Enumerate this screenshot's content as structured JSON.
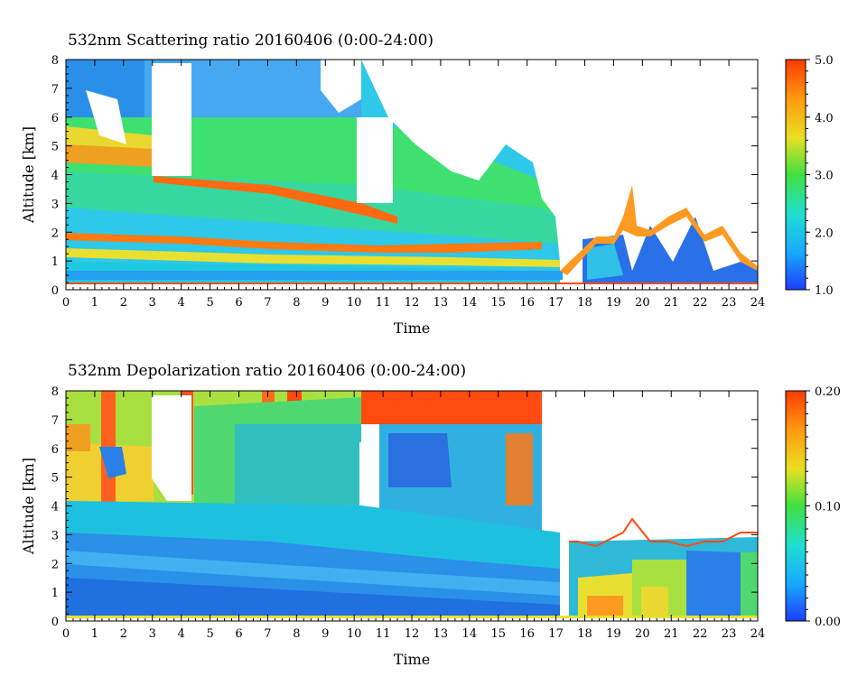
{
  "chart_data": [
    {
      "type": "heatmap",
      "title": "532nm Scattering ratio  20160406 (0:00-24:00)",
      "xlabel": "Time",
      "ylabel": "Altitude [km]",
      "xlim": [
        0,
        24
      ],
      "ylim": [
        0,
        8
      ],
      "x_ticks": [
        "0",
        "1",
        "2",
        "3",
        "4",
        "5",
        "6",
        "7",
        "8",
        "9",
        "10",
        "11",
        "12",
        "13",
        "14",
        "15",
        "16",
        "17",
        "18",
        "19",
        "20",
        "21",
        "22",
        "23",
        "24"
      ],
      "y_ticks": [
        "0",
        "1",
        "2",
        "3",
        "4",
        "5",
        "6",
        "7",
        "8"
      ],
      "colorbar": {
        "range": [
          1.0,
          5.0
        ],
        "tick_labels": [
          "1.0",
          "2.0",
          "3.0",
          "4.0",
          "5.0"
        ],
        "colors": [
          "#1e3cff",
          "#18a8ff",
          "#1ee0d0",
          "#40e040",
          "#e8e020",
          "#ff9a10",
          "#ff3a00"
        ]
      }
    },
    {
      "type": "heatmap",
      "title": "532nm Depolarization ratio  20160406 (0:00-24:00)",
      "xlabel": "Time",
      "ylabel": "Altitude [km]",
      "xlim": [
        0,
        24
      ],
      "ylim": [
        0,
        8
      ],
      "x_ticks": [
        "0",
        "1",
        "2",
        "3",
        "4",
        "5",
        "6",
        "7",
        "8",
        "9",
        "10",
        "11",
        "12",
        "13",
        "14",
        "15",
        "16",
        "17",
        "18",
        "19",
        "20",
        "21",
        "22",
        "23",
        "24"
      ],
      "y_ticks": [
        "0",
        "1",
        "2",
        "3",
        "4",
        "5",
        "6",
        "7",
        "8"
      ],
      "colorbar": {
        "range": [
          0.0,
          0.2
        ],
        "tick_labels": [
          "0.00",
          "0.10",
          "0.20"
        ],
        "colors": [
          "#1e3cff",
          "#18a8ff",
          "#1ee0d0",
          "#40e040",
          "#e8e020",
          "#ff9a10",
          "#ff3a00"
        ]
      }
    }
  ]
}
